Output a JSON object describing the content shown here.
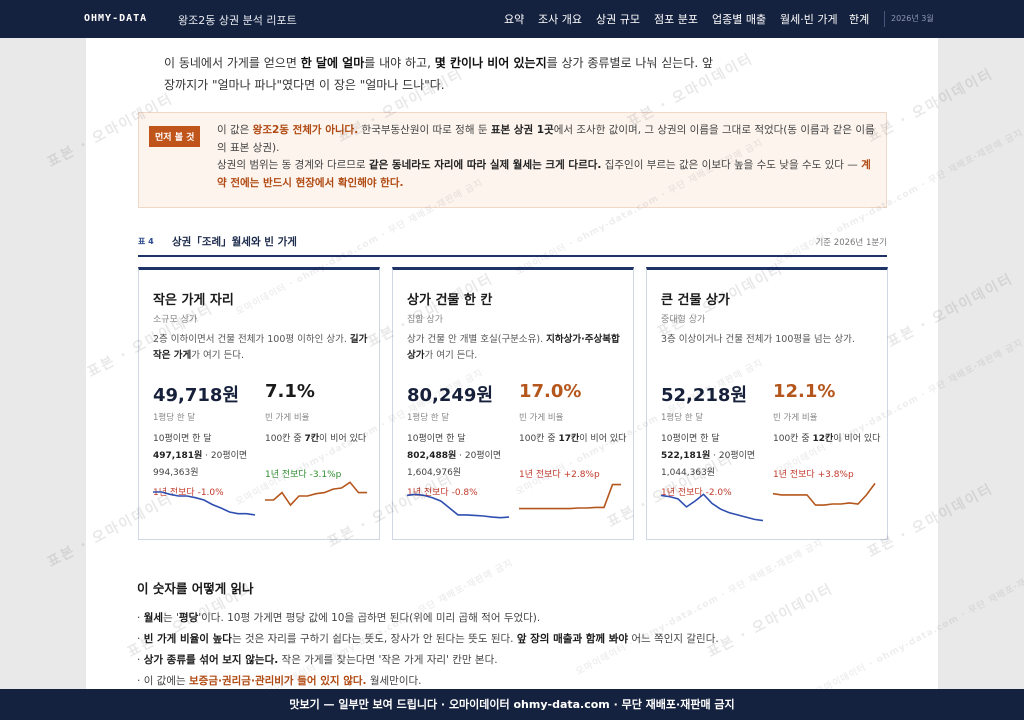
{
  "header": {
    "brand": "OHMY-DATA",
    "title": "왕조2동 상권 분석 리포트",
    "nav": [
      "요약",
      "조사 개요",
      "상권 규모",
      "점포 분포",
      "업종별 매출",
      "월세·빈 가게",
      "한계"
    ],
    "date": "2026년 3월"
  },
  "intro": {
    "p1": "이 동네에서 가게를 얻으면 ",
    "b1": "한 달에 얼마",
    "p2": "를 내야 하고, ",
    "b2": "몇 칸이나 비어 있는지",
    "p3": "를 상가 종류별로 나눠 싣는다. 앞",
    "line2": "장까지가 \"얼마나 파나\"였다면 이 장은 \"얼마나 드나\"다."
  },
  "callout": {
    "tag": "먼저 볼 것",
    "l1a": "이 값은 ",
    "l1b": "왕조2동 전체가 아니다.",
    "l1c": " 한국부동산원이 따로 정해 둔 ",
    "l1d": "표본 상권 1곳",
    "l1e": "에서 조사한 값이며, 그 상권의 이름을 그대로 적었다(동 이름과 같은 이름의 표본 상권).",
    "l2a": "상권의 범위는 동 경계와 다르므로 ",
    "l2b": "같은 동네라도 자리에 따라 실제 월세는 크게 다르다.",
    "l2c": " 집주인이 부르는 값은 이보다 높을 수도 낮을 수도 있다 — ",
    "l2d": "계약 전에는 반드시 현장에서 확인해야 한다."
  },
  "table": {
    "num": "표 4",
    "title": "상권「조례」월세와 빈 가게",
    "basis": "기준 2026년 1분기"
  },
  "cards": [
    {
      "title": "작은 가게 자리",
      "sub": "소규모 상가",
      "desc_a": "2층 이하이면서 건물 전체가 100평 이하인 상가. ",
      "desc_b": "길가 작은 가게",
      "desc_c": "가 여기 든다.",
      "desc_d": "",
      "desc_e": "",
      "rent": "49,718원",
      "rent_label": "1평당 한 달",
      "rent_d1": "10평이면 한 달",
      "rent_d2": "497,181원",
      "rent_d3": " · 20평이면",
      "rent_d4": "994,363원",
      "rent_change": "1년 전보다 -1.0%",
      "rate": "7.1%",
      "rate_color": "#1a1a1a",
      "rate_label": "빈 가게 비율",
      "rate_d1": "100칸 중 ",
      "rate_d2": "7칸",
      "rate_d3": "이 비어 있다",
      "rate_change": "1년 전보다 -3.1%p",
      "rate_change_color": "#2e8b2e"
    },
    {
      "title": "상가 건물 한 칸",
      "sub": "집합 상가",
      "desc_a": "상가 건물 안 개별 호실(구분소유). ",
      "desc_b": "지하상가·주상복합 상가",
      "desc_c": "가 여기 든다.",
      "desc_d": "",
      "desc_e": "",
      "rent": "80,249원",
      "rent_label": "1평당 한 달",
      "rent_d1": "10평이면 한 달",
      "rent_d2": "802,488원",
      "rent_d3": " · 20평이면",
      "rent_d4": "1,604,976원",
      "rent_change": "1년 전보다 -0.8%",
      "rate": "17.0%",
      "rate_color": "#b5561c",
      "rate_label": "빈 가게 비율",
      "rate_d1": "100칸 중 ",
      "rate_d2": "17칸",
      "rate_d3": "이 비어 있다",
      "rate_change": "1년 전보다 +2.8%p",
      "rate_change_color": "#c0392b"
    },
    {
      "title": "큰 건물 상가",
      "sub": "중대형 상가",
      "desc_a": "3층 이상이거나 건물 전체가 100평을 넘는 상가.",
      "desc_b": "",
      "desc_c": "",
      "desc_d": "",
      "desc_e": "",
      "rent": "52,218원",
      "rent_label": "1평당 한 달",
      "rent_d1": "10평이면 한 달",
      "rent_d2": "522,181원",
      "rent_d3": " · 20평이면",
      "rent_d4": "1,044,363원",
      "rent_change": "1년 전보다 -2.0%",
      "rate": "12.1%",
      "rate_color": "#b5561c",
      "rate_label": "빈 가게 비율",
      "rate_d1": "100칸 중 ",
      "rate_d2": "12칸",
      "rate_d3": "이 비어 있다",
      "rate_change": "1년 전보다 +3.8%p",
      "rate_change_color": "#c0392b"
    }
  ],
  "trends": {
    "rent_color": "#2f4fb0",
    "rate_color": "#b5561c",
    "rent": [
      [
        7,
        7,
        6.6,
        6.3,
        6.3,
        6.0,
        5.6,
        4.8,
        4.2,
        3.5,
        3.2,
        3.2,
        3.0
      ],
      [
        6.4,
        6.6,
        6.4,
        6.0,
        5.4,
        4.2,
        3.0,
        3.0,
        2.9,
        2.8,
        2.6,
        2.5,
        2.6
      ],
      [
        6.4,
        6.2,
        5.8,
        4.4,
        5.4,
        6.6,
        5.0,
        4.0,
        3.4,
        3.0,
        2.6,
        2.2,
        2.0
      ]
    ],
    "rate": [
      [
        3.5,
        3.5,
        4.8,
        2.6,
        4.2,
        4.2,
        4.6,
        4.8,
        5.4,
        5.6,
        6.6,
        4.8,
        4.8
      ],
      [
        2.0,
        2.0,
        2.0,
        2.0,
        2.0,
        2.0,
        2.0,
        2.1,
        2.1,
        2.2,
        2.2,
        6.2,
        6.2
      ],
      [
        4.6,
        4.4,
        4.4,
        4.4,
        4.4,
        2.6,
        2.6,
        2.8,
        2.8,
        3.0,
        2.8,
        4.4,
        6.4
      ]
    ]
  },
  "section": {
    "title": "이 숫자를 어떻게 읽나",
    "b1a": "월세",
    "b1b": "는 '",
    "b1c": "평당",
    "b1d": "'이다. 10평 가게면 평당 값에 10을 곱하면 된다(위에 미리 곱해 적어 두었다).",
    "b2a": "빈 가게 비율이 높다",
    "b2b": "는 것은 자리를 구하기 쉽다는 뜻도, 장사가 안 된다는 뜻도 된다. ",
    "b2c": "앞 장의 매출과 함께 봐야",
    "b2d": " 어느 쪽인지 갈린다.",
    "b3a": "상가 종류를 섞어 보지 않는다.",
    "b3b": " 작은 가게를 찾는다면 '작은 가게 자리' 칸만 본다.",
    "b4a": "이 값에는 ",
    "b4b": "보증금·권리금·관리비가 들어 있지 않다.",
    "b4c": " 월세만이다."
  },
  "footer": "맛보기 — 일부만 보여 드립니다 · 오마이데이터 ohmy-data.com · 무단 재배포·재판매 금지",
  "watermark": {
    "big": "표본 · 오마이데이터",
    "small": "오마이데이터 · ohmy-data.com · 무단 재배포·재판매 금지"
  }
}
